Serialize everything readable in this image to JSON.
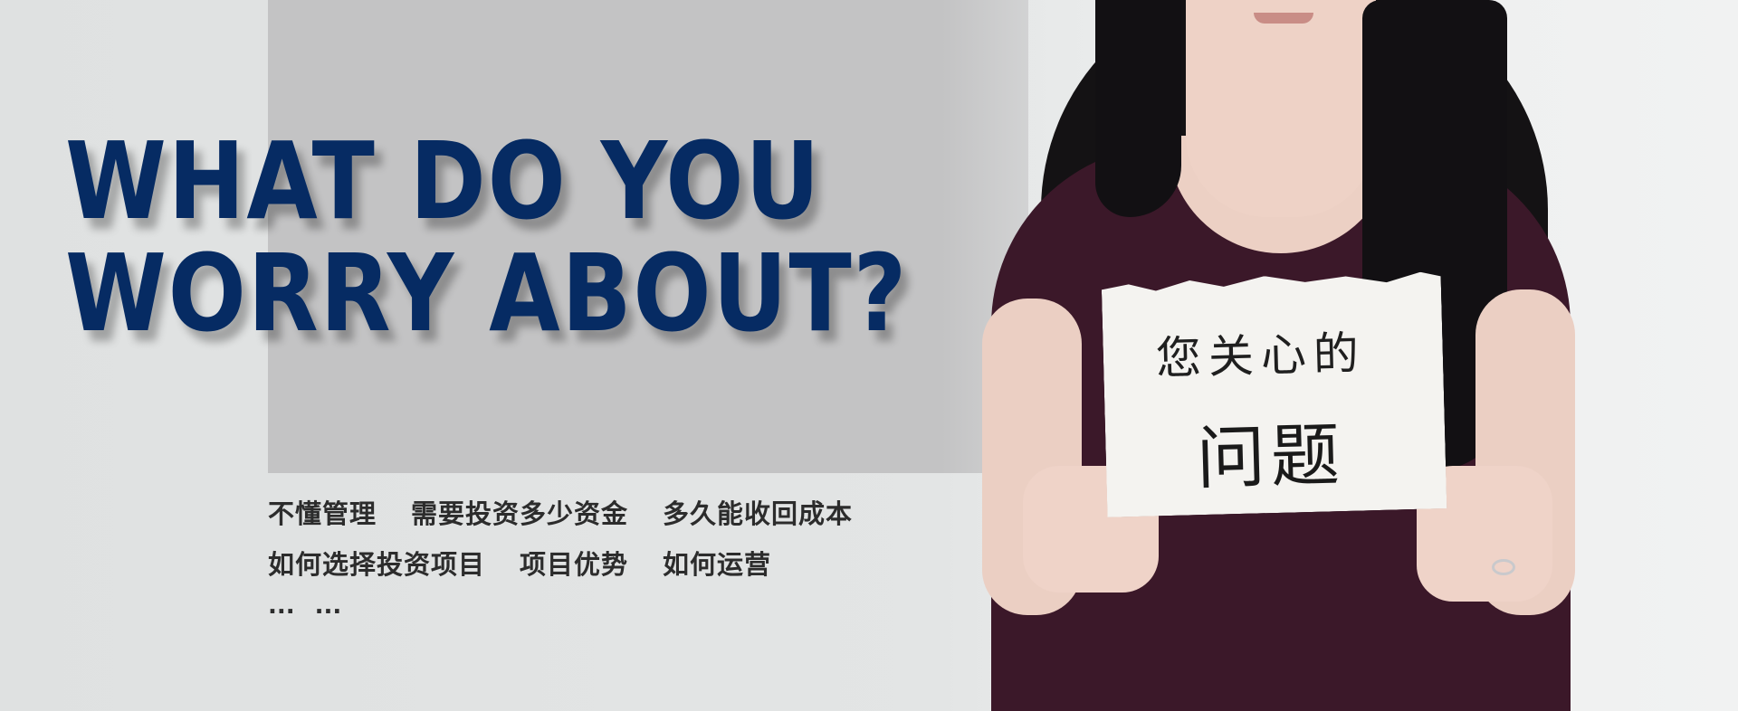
{
  "headline": {
    "line1": "WHAT DO YOU",
    "line2": "WORRY ABOUT?"
  },
  "worries": {
    "row1": [
      "不懂管理",
      "需要投资多少资金",
      "多久能收回成本"
    ],
    "row2": [
      "如何选择投资项目",
      "项目优势",
      "如何运营"
    ],
    "ellipsis": [
      "...",
      "..."
    ]
  },
  "sign": {
    "line1": "您关心的",
    "line2": "问题"
  },
  "colors": {
    "headline": "#062b63",
    "gray_block": "#c3c3c4",
    "shirt": "#3b1829",
    "text": "#2c2c2c"
  }
}
